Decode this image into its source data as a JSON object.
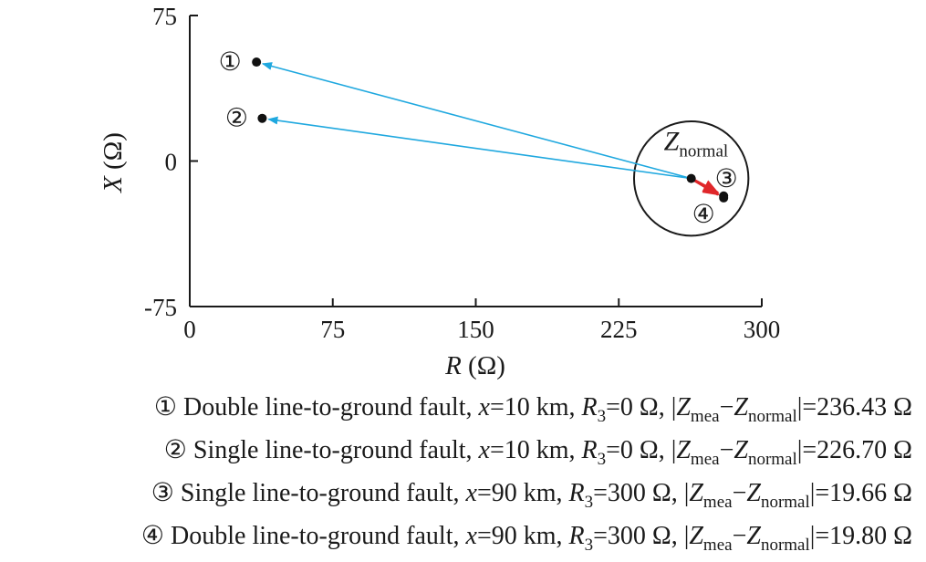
{
  "chart_data": {
    "type": "scatter",
    "xlabel": "R (Ω)",
    "ylabel": "X (Ω)",
    "xlim": [
      0,
      300
    ],
    "ylim": [
      -75,
      75
    ],
    "x_ticks": [
      "0",
      "75",
      "150",
      "225",
      "300"
    ],
    "y_ticks": [
      "75",
      "0",
      "-75"
    ],
    "grid": false,
    "reference": {
      "label_main": "Z",
      "label_sub": "normal",
      "x": 263,
      "y": -9,
      "circle_radius": 30
    },
    "points": [
      {
        "marker": "①",
        "x": 35,
        "y": 51,
        "arrow_color": "#1fa8df"
      },
      {
        "marker": "②",
        "x": 38,
        "y": 22,
        "arrow_color": "#1fa8df"
      },
      {
        "marker": "③",
        "x": 280,
        "y": -18,
        "arrow_color": "#e0272a"
      },
      {
        "marker": "④",
        "x": 280,
        "y": -19,
        "arrow_color": "#e0272a"
      }
    ],
    "legend": [
      {
        "marker": "①",
        "type": "Double line-to-ground fault, ",
        "x_var": "x",
        "x_val": "=10 km, ",
        "r_var": "R",
        "r_sub": "3",
        "r_val": "=0 Ω, |",
        "z1": "Z",
        "z1_sub": "mea",
        "dash": "−",
        "z2": "Z",
        "z2_sub": "normal",
        "result": "|=236.43 Ω"
      },
      {
        "marker": "②",
        "type": "Single line-to-ground fault, ",
        "x_var": "x",
        "x_val": "=10 km, ",
        "r_var": "R",
        "r_sub": "3",
        "r_val": "=0 Ω, |",
        "z1": "Z",
        "z1_sub": "mea",
        "dash": "−",
        "z2": "Z",
        "z2_sub": "normal",
        "result": "|=226.70 Ω"
      },
      {
        "marker": "③",
        "type": "Single line-to-ground fault, ",
        "x_var": "x",
        "x_val": "=90 km, ",
        "r_var": "R",
        "r_sub": "3",
        "r_val": "=300 Ω, |",
        "z1": "Z",
        "z1_sub": "mea",
        "dash": "−",
        "z2": "Z",
        "z2_sub": "normal",
        "result": "|=19.66 Ω"
      },
      {
        "marker": "④",
        "type": "Double line-to-ground fault, ",
        "x_var": "x",
        "x_val": "=90 km, ",
        "r_var": "R",
        "r_sub": "3",
        "r_val": "=300 Ω, |",
        "z1": "Z",
        "z1_sub": "mea",
        "dash": "−",
        "z2": "Z",
        "z2_sub": "normal",
        "result": "|=19.80 Ω"
      }
    ]
  },
  "axis_labels": {
    "x_main": "R",
    "x_unit": " (Ω)",
    "y_main": "X",
    "y_unit": " (Ω)"
  }
}
